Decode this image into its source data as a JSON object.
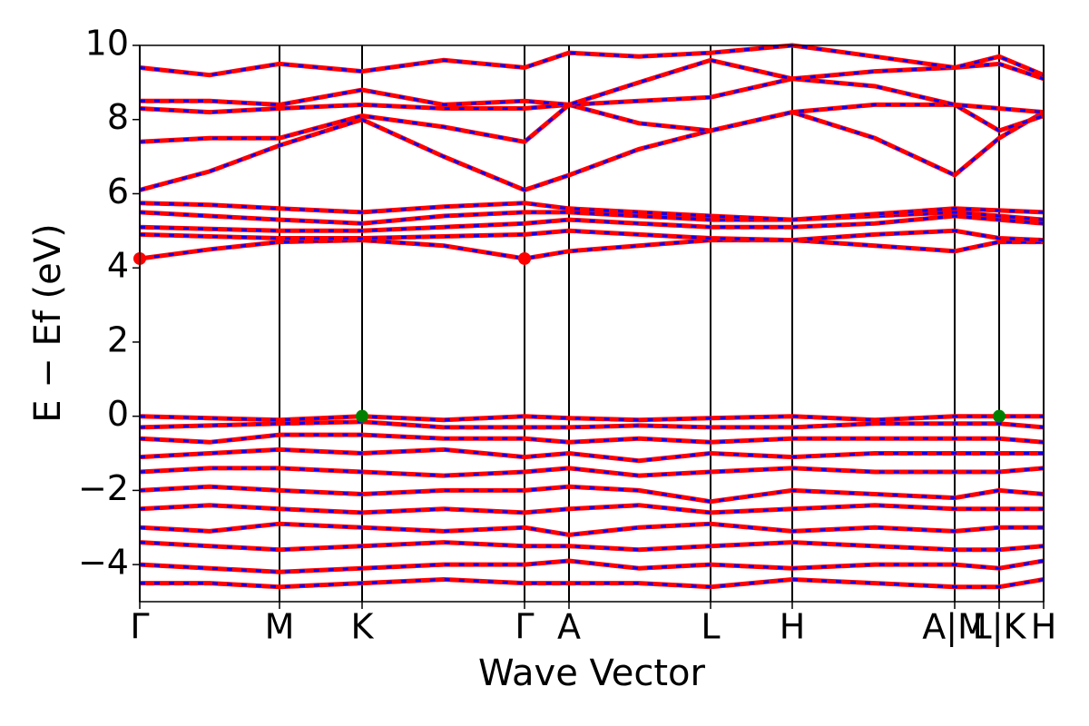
{
  "chart_data": {
    "type": "line",
    "xlabel": "Wave Vector",
    "ylabel": "E − Ef (eV)",
    "x": [
      0,
      0.77,
      1.54,
      2.45,
      3.35,
      4.24,
      4.73,
      5.5,
      6.29,
      7.19,
      8.1,
      8.98,
      9.47,
      9.96
    ],
    "xlim": [
      0,
      9.96
    ],
    "xticks": [
      {
        "value": 0,
        "label": "Γ"
      },
      {
        "value": 1.54,
        "label": "M"
      },
      {
        "value": 2.45,
        "label": "K"
      },
      {
        "value": 4.24,
        "label": "Γ"
      },
      {
        "value": 4.73,
        "label": "A"
      },
      {
        "value": 6.29,
        "label": "L"
      },
      {
        "value": 7.19,
        "label": "H"
      },
      {
        "value": 8.98,
        "label": "A|M"
      },
      {
        "value": 9.47,
        "label": "L|K"
      },
      {
        "value": 9.96,
        "label": "H"
      }
    ],
    "ylim": [
      -5,
      10
    ],
    "yticks": [
      {
        "value": -4,
        "label": "−4"
      },
      {
        "value": -2,
        "label": "−2"
      },
      0,
      2,
      4,
      6,
      8,
      10
    ],
    "dash_color": "#0000ff",
    "series": [
      {
        "color": "#ff0000",
        "values": [
          4.25,
          4.5,
          4.7,
          4.75,
          4.6,
          4.25,
          4.45,
          4.6,
          4.75,
          4.75,
          4.6,
          4.45,
          4.7,
          4.7
        ]
      },
      {
        "color": "#ff0000",
        "values": [
          4.9,
          4.85,
          4.8,
          4.8,
          4.85,
          4.9,
          5.0,
          4.9,
          4.8,
          4.75,
          4.9,
          5.0,
          4.8,
          4.75
        ]
      },
      {
        "color": "#ff0000",
        "values": [
          5.1,
          5.05,
          5.0,
          5.0,
          5.1,
          5.2,
          5.3,
          5.2,
          5.1,
          5.1,
          5.2,
          5.4,
          5.3,
          5.2
        ]
      },
      {
        "color": "#ff0000",
        "values": [
          5.5,
          5.4,
          5.3,
          5.2,
          5.4,
          5.5,
          5.5,
          5.4,
          5.3,
          5.3,
          5.4,
          5.5,
          5.4,
          5.3
        ]
      },
      {
        "color": "#ff0000",
        "values": [
          5.75,
          5.7,
          5.6,
          5.5,
          5.65,
          5.75,
          5.6,
          5.5,
          5.4,
          5.3,
          5.45,
          5.6,
          5.55,
          5.5
        ]
      },
      {
        "color": "#ff0000",
        "values": [
          6.1,
          6.6,
          7.3,
          8.0,
          7.0,
          6.1,
          6.5,
          7.2,
          7.7,
          8.2,
          7.5,
          6.5,
          7.5,
          8.2
        ]
      },
      {
        "color": "#ff0000",
        "values": [
          7.4,
          7.5,
          7.5,
          8.1,
          7.8,
          7.4,
          8.4,
          7.9,
          7.7,
          8.2,
          8.4,
          8.4,
          7.7,
          8.1
        ]
      },
      {
        "color": "#ff0000",
        "values": [
          8.3,
          8.2,
          8.3,
          8.4,
          8.3,
          8.3,
          8.4,
          8.5,
          8.6,
          9.1,
          8.9,
          8.4,
          8.3,
          8.2
        ]
      },
      {
        "color": "#ff0000",
        "values": [
          8.5,
          8.5,
          8.4,
          8.8,
          8.4,
          8.5,
          8.4,
          9.0,
          9.6,
          9.1,
          9.3,
          9.4,
          9.5,
          9.1
        ]
      },
      {
        "color": "#ff0000",
        "values": [
          9.4,
          9.2,
          9.5,
          9.3,
          9.6,
          9.4,
          9.8,
          9.7,
          9.8,
          10.0,
          9.7,
          9.4,
          9.7,
          9.2
        ]
      },
      {
        "color": "#ff0000",
        "values": [
          0,
          -0.05,
          -0.1,
          0,
          -0.1,
          0,
          -0.05,
          -0.1,
          -0.05,
          0,
          -0.1,
          0,
          0,
          0
        ]
      },
      {
        "color": "#ff0000",
        "values": [
          -0.3,
          -0.25,
          -0.2,
          -0.15,
          -0.3,
          -0.3,
          -0.3,
          -0.25,
          -0.3,
          -0.3,
          -0.2,
          -0.2,
          -0.2,
          -0.3
        ]
      },
      {
        "color": "#ff0000",
        "values": [
          -0.6,
          -0.7,
          -0.5,
          -0.5,
          -0.6,
          -0.6,
          -0.7,
          -0.6,
          -0.7,
          -0.6,
          -0.6,
          -0.6,
          -0.6,
          -0.7
        ]
      },
      {
        "color": "#ff0000",
        "values": [
          -1.1,
          -1.0,
          -0.9,
          -1.0,
          -0.9,
          -1.1,
          -1.0,
          -1.2,
          -1.0,
          -1.1,
          -1.0,
          -1.0,
          -1.0,
          -1.0
        ]
      },
      {
        "color": "#ff0000",
        "values": [
          -1.5,
          -1.4,
          -1.4,
          -1.5,
          -1.6,
          -1.5,
          -1.4,
          -1.6,
          -1.5,
          -1.4,
          -1.5,
          -1.5,
          -1.5,
          -1.4
        ]
      },
      {
        "color": "#ff0000",
        "values": [
          -2.0,
          -1.9,
          -2.0,
          -2.1,
          -2.0,
          -2.0,
          -1.9,
          -2.0,
          -2.3,
          -2.0,
          -2.1,
          -2.2,
          -2.0,
          -2.1
        ]
      },
      {
        "color": "#ff0000",
        "values": [
          -2.5,
          -2.4,
          -2.5,
          -2.6,
          -2.5,
          -2.6,
          -2.5,
          -2.4,
          -2.6,
          -2.5,
          -2.4,
          -2.5,
          -2.5,
          -2.5
        ]
      },
      {
        "color": "#ff0000",
        "values": [
          -3.0,
          -3.1,
          -2.9,
          -3.0,
          -3.1,
          -3.0,
          -3.2,
          -3.0,
          -2.9,
          -3.1,
          -3.0,
          -3.1,
          -3.0,
          -3.0
        ]
      },
      {
        "color": "#ff0000",
        "values": [
          -3.4,
          -3.5,
          -3.6,
          -3.5,
          -3.4,
          -3.5,
          -3.5,
          -3.6,
          -3.5,
          -3.4,
          -3.5,
          -3.6,
          -3.6,
          -3.5
        ]
      },
      {
        "color": "#ff0000",
        "values": [
          -4.0,
          -4.1,
          -4.2,
          -4.1,
          -4.0,
          -4.0,
          -3.9,
          -4.1,
          -4.0,
          -4.1,
          -4.0,
          -4.0,
          -4.1,
          -3.9
        ]
      },
      {
        "color": "#ff0000",
        "values": [
          -4.5,
          -4.5,
          -4.6,
          -4.5,
          -4.4,
          -4.5,
          -4.5,
          -4.5,
          -4.6,
          -4.4,
          -4.5,
          -4.6,
          -4.6,
          -4.4
        ]
      }
    ],
    "points": [
      {
        "x": 0,
        "y": 4.25,
        "color": "#ff0000"
      },
      {
        "x": 4.24,
        "y": 4.25,
        "color": "#ff0000"
      },
      {
        "x": 2.45,
        "y": 0,
        "color": "#008000"
      },
      {
        "x": 9.47,
        "y": 0,
        "color": "#008000"
      }
    ]
  }
}
